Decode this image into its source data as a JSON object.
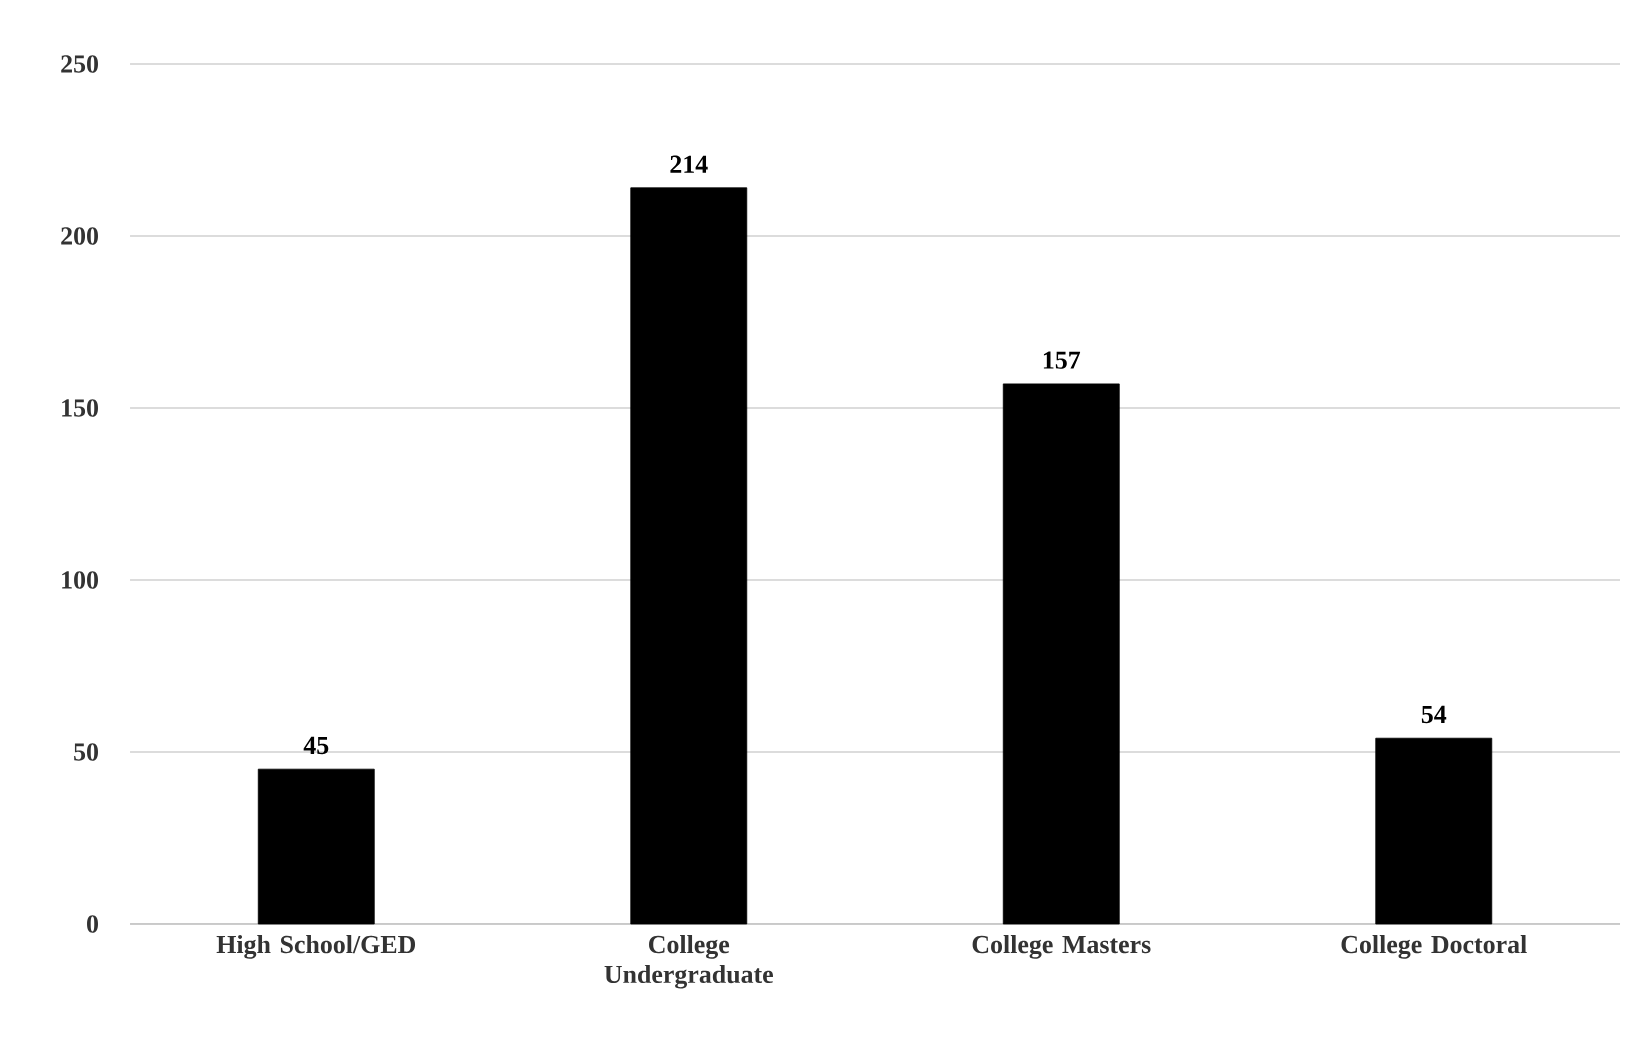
{
  "chart_data": {
    "type": "bar",
    "categories": [
      "High School/GED",
      "College Undergraduate",
      "College Masters",
      "College Doctoral"
    ],
    "values": [
      45,
      214,
      157,
      54
    ],
    "color": "#000000",
    "ylim": [
      0,
      250
    ],
    "yticks": [
      0,
      50,
      100,
      150,
      200,
      250
    ],
    "grid": "y",
    "data_labels": true
  }
}
